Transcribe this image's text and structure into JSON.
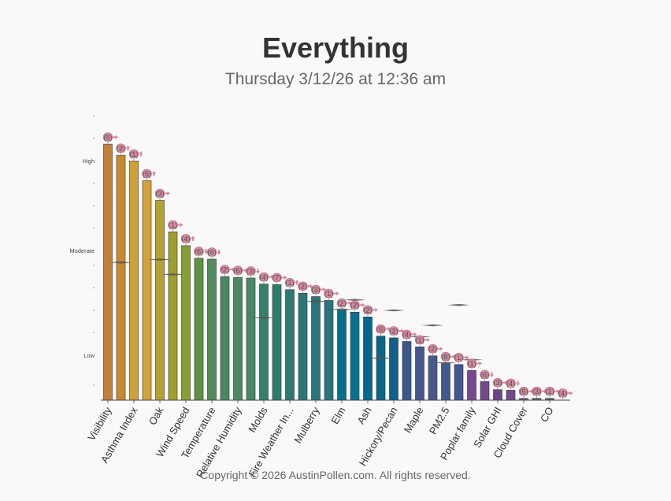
{
  "page": {
    "title": "Everything",
    "subtitle": "Thursday 3/12/26 at 12:36 am",
    "copyright": "Copyright © 2026 AustinPollen.com.  All rights reserved."
  },
  "chart_data": {
    "type": "bar",
    "title": "Everything",
    "subtitle": "Thursday 3/12/26 at 12:36 am",
    "ylim": [
      0,
      100
    ],
    "y_ticks": [
      {
        "label": "High",
        "value": 80
      },
      {
        "label": "Moderate",
        "value": 50
      },
      {
        "label": "Low",
        "value": 15
      }
    ],
    "y_minor_ticks": [
      5,
      22.5,
      30,
      37.5,
      45,
      57.5,
      65,
      72.5,
      87.5,
      95
    ],
    "x_tick_labels": [
      "Visibility",
      "Asthma Index",
      "Oak",
      "Wind Speed",
      "Temperature",
      "Relative Humidity",
      "Molds",
      "Fire Weather In...",
      "Mulberry",
      "Elm",
      "Ash",
      "Hickory/Pecan",
      "Maple",
      "PM2.5",
      "Poplar family",
      "Solar GHI",
      "Cloud Cover",
      "CO"
    ],
    "bars": [
      {
        "value": 85.5,
        "color": "#c27f36",
        "badge": "5",
        "trend": "right",
        "marker": null
      },
      {
        "value": 81.8,
        "color": "#c8892f",
        "badge": "2",
        "trend": "up",
        "marker": 46
      },
      {
        "value": 79.9,
        "color": "#d2a03a",
        "badge": "1",
        "trend": "up",
        "marker": null
      },
      {
        "value": 73.3,
        "color": "#d4a23b",
        "badge": "5",
        "trend": "up",
        "marker": null
      },
      {
        "value": 66.7,
        "color": "#b6a231",
        "badge": "3",
        "trend": "right",
        "marker": 47
      },
      {
        "value": 56.2,
        "color": "#9e9f2e",
        "badge": "1",
        "trend": "right",
        "marker": 42
      },
      {
        "value": 51.6,
        "color": "#84a035",
        "badge": "4",
        "trend": "up",
        "marker": null
      },
      {
        "value": 47.4,
        "color": "#5f9145",
        "badge": "6",
        "trend": "down",
        "marker": null
      },
      {
        "value": 47.1,
        "color": "#528b5b",
        "badge": "6",
        "trend": "down",
        "marker": null
      },
      {
        "value": 41.3,
        "color": "#4a8960",
        "badge": "2",
        "trend": "right",
        "marker": null
      },
      {
        "value": 41.0,
        "color": "#4a8963",
        "badge": "6",
        "trend": "right",
        "marker": null
      },
      {
        "value": 40.8,
        "color": "#478767",
        "badge": "3",
        "trend": "down",
        "marker": null
      },
      {
        "value": 38.8,
        "color": "#34806b",
        "badge": "4",
        "trend": "right",
        "marker": 27.5
      },
      {
        "value": 38.6,
        "color": "#2e7e6e",
        "badge": "7",
        "trend": "right",
        "marker": null
      },
      {
        "value": 36.9,
        "color": "#2c7a72",
        "badge": "1",
        "trend": "up",
        "marker": null
      },
      {
        "value": 35.7,
        "color": "#2a7775",
        "badge": "2",
        "trend": "right",
        "marker": null
      },
      {
        "value": 34.6,
        "color": "#2a7679",
        "badge": "3",
        "trend": "right",
        "marker": 33
      },
      {
        "value": 33.3,
        "color": "#2a747b",
        "badge": "1",
        "trend": "right",
        "marker": null
      },
      {
        "value": 30.1,
        "color": "#056f8e",
        "badge": "2",
        "trend": "right",
        "marker": 30.3
      },
      {
        "value": 29.4,
        "color": "#0a7091",
        "badge": "2",
        "trend": "right",
        "marker": 33.5
      },
      {
        "value": 27.8,
        "color": "#00688d",
        "badge": "2",
        "trend": "right",
        "marker": null
      },
      {
        "value": 21.4,
        "color": "#0b6588",
        "badge": "6",
        "trend": "right",
        "marker": 14
      },
      {
        "value": 20.8,
        "color": "#115f8b",
        "badge": "2",
        "trend": "right",
        "marker": 30
      },
      {
        "value": 19.6,
        "color": "#3a588c",
        "badge": "4",
        "trend": "right",
        "marker": null
      },
      {
        "value": 17.8,
        "color": "#44568d",
        "badge": "1",
        "trend": "right",
        "marker": 21.2
      },
      {
        "value": 14.8,
        "color": "#4a588b",
        "badge": "2",
        "trend": "right",
        "marker": 25
      },
      {
        "value": 12.2,
        "color": "#42578f",
        "badge": "8",
        "trend": "right",
        "marker": 12.5
      },
      {
        "value": 11.9,
        "color": "#445690",
        "badge": "1",
        "trend": "right",
        "marker": 31.8
      },
      {
        "value": 9.9,
        "color": "#77488f",
        "badge": "1",
        "trend": "right",
        "marker": 13.5
      },
      {
        "value": 6.2,
        "color": "#724a8c",
        "badge": "6",
        "trend": "down",
        "marker": null
      },
      {
        "value": 3.5,
        "color": "#6a4586",
        "badge": "3",
        "trend": "right",
        "marker": null
      },
      {
        "value": 3.3,
        "color": "#704a8a",
        "badge": "4",
        "trend": "down",
        "marker": null
      },
      {
        "value": 0.6,
        "color": "#665c74",
        "badge": "6",
        "trend": "right",
        "marker": null
      },
      {
        "value": 0.6,
        "color": "#59637f",
        "badge": "3",
        "trend": "right",
        "marker": null
      },
      {
        "value": 0.6,
        "color": "#59627f",
        "badge": "1",
        "trend": "right",
        "marker": null
      },
      {
        "value": 0,
        "color": "#444444",
        "badge": "4",
        "trend": "right",
        "marker": null
      }
    ],
    "x_tick_every": 2,
    "grid": false,
    "legend": "none",
    "badge_color": "#d5879c",
    "axis_color": "#444444"
  }
}
